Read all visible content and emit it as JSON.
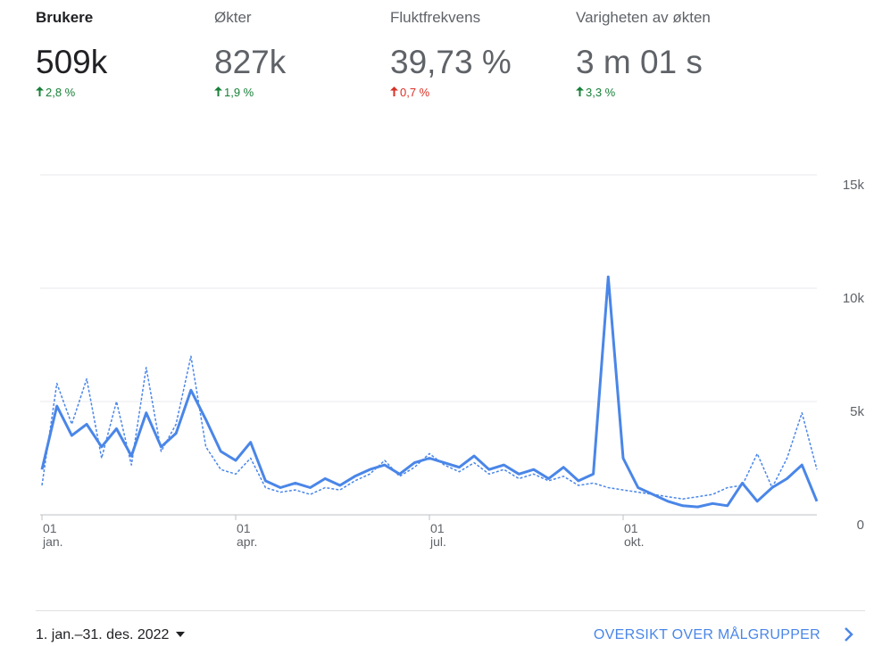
{
  "metrics": [
    {
      "label": "Brukere",
      "value": "509k",
      "change": "2,8 %",
      "change_color": "#188038"
    },
    {
      "label": "Økter",
      "value": "827k",
      "change": "1,9 %",
      "change_color": "#188038"
    },
    {
      "label": "Fluktfrekvens",
      "value": "39,73 %",
      "change": "0,7 %",
      "change_color": "#d93025"
    },
    {
      "label": "Varigheten av økten",
      "value": "3 m 01 s",
      "change": "3,3 %",
      "change_color": "#188038"
    }
  ],
  "chart_data": {
    "type": "line",
    "categories": [
      "01 jan.",
      null,
      null,
      null,
      null,
      null,
      null,
      null,
      null,
      null,
      null,
      null,
      null,
      "01 apr.",
      null,
      null,
      null,
      null,
      null,
      null,
      null,
      null,
      null,
      null,
      null,
      null,
      "01 jul.",
      null,
      null,
      null,
      null,
      null,
      null,
      null,
      null,
      null,
      null,
      null,
      null,
      "01 okt.",
      null,
      null,
      null,
      null,
      null,
      null,
      null,
      null,
      null,
      null,
      null,
      null,
      null
    ],
    "series": [
      {
        "color": "#4a86e8",
        "style": "solid",
        "values": [
          2000,
          4800,
          3500,
          4000,
          3000,
          3800,
          2600,
          4500,
          3000,
          3600,
          5500,
          4200,
          2800,
          2400,
          3200,
          1500,
          1200,
          1400,
          1200,
          1600,
          1300,
          1700,
          2000,
          2200,
          1800,
          2300,
          2500,
          2300,
          2100,
          2600,
          2000,
          2200,
          1800,
          2000,
          1600,
          2100,
          1500,
          1800,
          10500,
          2500,
          1200,
          900,
          600,
          400,
          350,
          500,
          400,
          1400,
          600,
          1200,
          1600,
          2200,
          600
        ]
      },
      {
        "color": "#4a86e8",
        "style": "dashed",
        "values": [
          1300,
          5800,
          4000,
          6000,
          2500,
          5000,
          2200,
          6500,
          2800,
          4000,
          7000,
          3000,
          2000,
          1800,
          2500,
          1200,
          1000,
          1100,
          900,
          1200,
          1100,
          1500,
          1800,
          2400,
          1700,
          2100,
          2700,
          2200,
          1900,
          2300,
          1800,
          2000,
          1600,
          1800,
          1500,
          1700,
          1300,
          1400,
          1200,
          1100,
          1000,
          900,
          800,
          700,
          800,
          900,
          1200,
          1300,
          2700,
          1200,
          2500,
          4500,
          2000
        ]
      }
    ],
    "ylim": [
      0,
      15000
    ],
    "yticks": [
      0,
      {
        "value": 5000,
        "label": "5k"
      },
      {
        "value": 10000,
        "label": "10k"
      },
      {
        "value": 15000,
        "label": "15k"
      }
    ],
    "grid": true
  },
  "footer": {
    "date_range": "1. jan.–31. des. 2022",
    "link": "OVERSIKT OVER MÅLGRUPPER"
  }
}
